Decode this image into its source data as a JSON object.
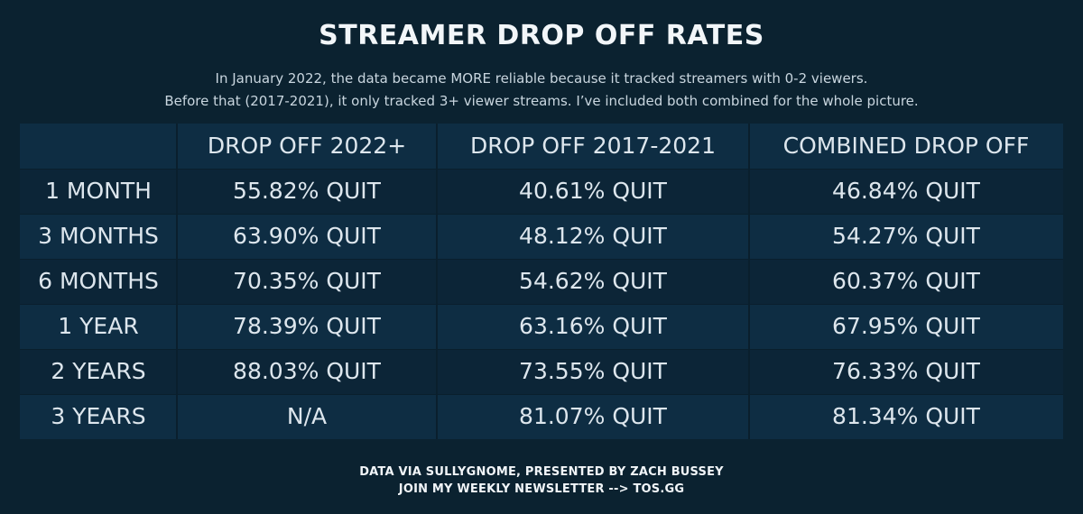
{
  "header": {
    "title": "STREAMER DROP OFF RATES",
    "subtitle_line1": "In January 2022, the data became MORE reliable because it tracked streamers with 0-2 viewers.",
    "subtitle_line2": "Before that (2017-2021), it only tracked 3+ viewer streams. I’ve included both combined for the whole picture."
  },
  "colors": {
    "background": "#0b2230",
    "table_light": "#0e2d43",
    "table_dark": "#0c2537",
    "text": "#dde6ed"
  },
  "chart_data": {
    "type": "table",
    "columns": [
      "",
      "DROP OFF 2022+",
      "DROP OFF 2017-2021",
      "COMBINED DROP OFF"
    ],
    "rows": [
      [
        "1 MONTH",
        "55.82% QUIT",
        "40.61% QUIT",
        "46.84% QUIT"
      ],
      [
        "3 MONTHS",
        "63.90% QUIT",
        "48.12% QUIT",
        "54.27% QUIT"
      ],
      [
        "6 MONTHS",
        "70.35% QUIT",
        "54.62% QUIT",
        "60.37% QUIT"
      ],
      [
        "1 YEAR",
        "78.39% QUIT",
        "63.16% QUIT",
        "67.95% QUIT"
      ],
      [
        "2 YEARS",
        "88.03% QUIT",
        "73.55% QUIT",
        "76.33% QUIT"
      ],
      [
        "3 YEARS",
        "N/A",
        "81.07% QUIT",
        "81.34% QUIT"
      ]
    ]
  },
  "footer": {
    "line1": "DATA VIA SULLYGNOME, PRESENTED BY ZACH BUSSEY",
    "line2": "JOIN MY WEEKLY NEWSLETTER --> TOS.GG"
  }
}
